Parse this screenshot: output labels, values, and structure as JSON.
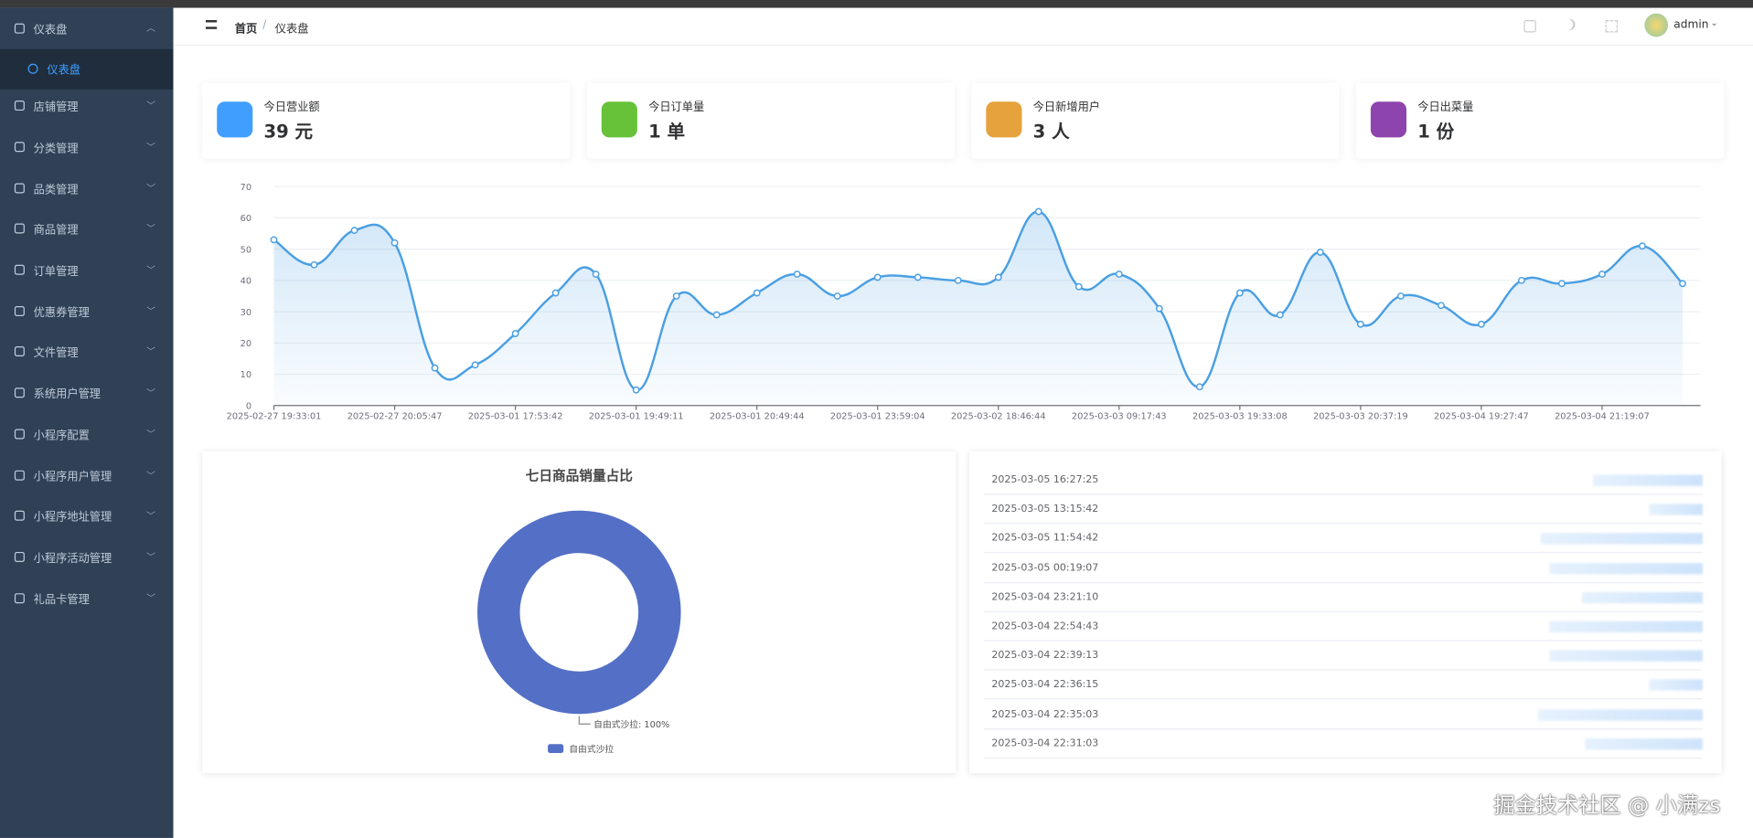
{
  "sidebar": {
    "menu": [
      "仪表盘",
      "店铺管理",
      "分类管理",
      "品类管理",
      "商品管理",
      "订单管理",
      "优惠券管理",
      "文件管理",
      "系统用户管理",
      "小程序配置",
      "小程序用户管理",
      "小程序地址管理",
      "小程序活动管理",
      "礼品卡管理"
    ],
    "submenu": [
      "仪表盘"
    ]
  },
  "header": {
    "breadcrumb": [
      "首页",
      "仪表盘"
    ],
    "separator": "/",
    "user": "admin"
  },
  "cards": [
    {
      "label": "今日营业额",
      "value": "39 元"
    },
    {
      "label": "今日订单量",
      "value": "1 单"
    },
    {
      "label": "今日新增用户",
      "value": "3 人"
    },
    {
      "label": "今日出菜量",
      "value": "1 份"
    }
  ],
  "chart_data": [
    {
      "type": "line",
      "categories": [
        "2025-02-27 19:33:01",
        null,
        null,
        "2025-02-27 20:05:47",
        null,
        null,
        "2025-03-01 17:53:42",
        null,
        null,
        "2025-03-01 19:49:11",
        null,
        null,
        "2025-03-01 20:49:44",
        null,
        null,
        "2025-03-01 23:59:04",
        null,
        null,
        "2025-03-02 18:46:44",
        null,
        null,
        "2025-03-03 09:17:43",
        null,
        null,
        "2025-03-03 19:33:08",
        null,
        null,
        "2025-03-03 20:37:19",
        null,
        null,
        "2025-03-04 19:27:47",
        null,
        null,
        "2025-03-04 21:19:07",
        null,
        null
      ],
      "series": [
        {
          "color": "#4a9fe3",
          "values": [
            53,
            45,
            56,
            52,
            12,
            13,
            23,
            36,
            42,
            5,
            35,
            29,
            36,
            42,
            35,
            41,
            41,
            40,
            41,
            62,
            38,
            42,
            31,
            6,
            36,
            29,
            49,
            26,
            35,
            32,
            26,
            40,
            39,
            42,
            51,
            39
          ]
        }
      ],
      "ylim": [
        0,
        70
      ],
      "yticks": [
        0,
        10,
        20,
        30,
        40,
        50,
        60,
        70
      ],
      "grid": true
    },
    {
      "type": "pie",
      "title": "七日商品销量占比",
      "donut": true,
      "categories": [
        "自由式沙拉"
      ],
      "values": [
        100
      ],
      "value_labels": [
        "自由式沙拉: 100%"
      ],
      "colors": [
        "#5470c6"
      ],
      "legend": "bottom"
    }
  ],
  "recent_list": [
    "2025-03-05 16:27:25",
    "2025-03-05 13:15:42",
    "2025-03-05 11:54:42",
    "2025-03-05 00:19:07",
    "2025-03-04 23:21:10",
    "2025-03-04 22:54:43",
    "2025-03-04 22:39:13",
    "2025-03-04 22:36:15",
    "2025-03-04 22:35:03",
    "2025-03-04 22:31:03"
  ],
  "watermark": "掘金技术社区 @ 小满zs"
}
